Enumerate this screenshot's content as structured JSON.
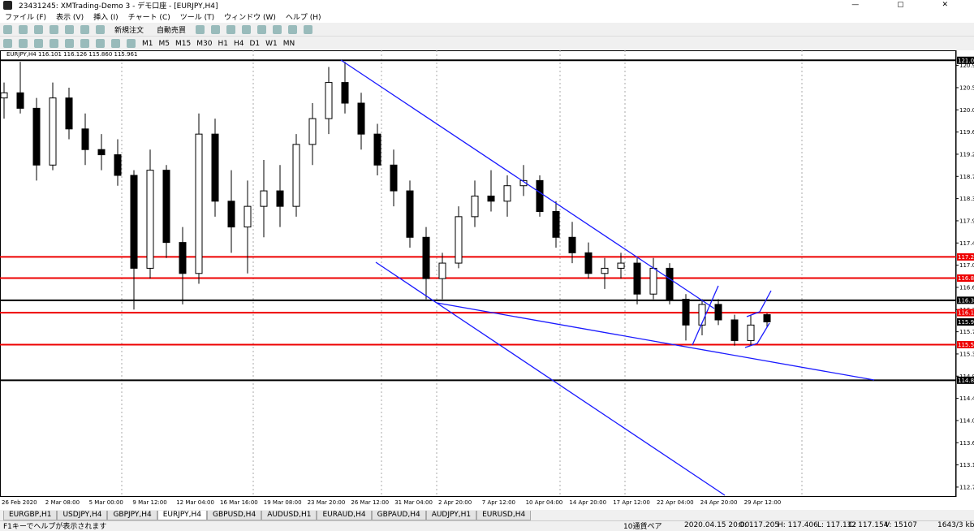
{
  "window": {
    "title": "23431245: XMTrading-Demo 3 - デモ口座 - [EURJPY,H4]"
  },
  "menu": [
    "ファイル (F)",
    "表示 (V)",
    "挿入 (I)",
    "チャート (C)",
    "ツール (T)",
    "ウィンドウ (W)",
    "ヘルプ (H)"
  ],
  "toolbar": {
    "buttons": [
      "新規注文",
      "自動売買"
    ],
    "timeframes": [
      "M1",
      "M5",
      "M15",
      "M30",
      "H1",
      "H4",
      "D1",
      "W1",
      "MN"
    ]
  },
  "chart_data": {
    "type": "candlestick",
    "header": "EURJPY,H4  116.101 116.126 115.860 115.961",
    "ylim": [
      112.57,
      121.16
    ],
    "yticks": [
      120.93,
      {
        "value": 120.5,
        "label": "120.50"
      },
      120.07,
      119.64,
      119.21,
      118.78,
      118.35,
      117.92,
      117.49,
      117.06,
      116.63,
      {
        "value": 116.2,
        "label": "116.20"
      },
      115.77,
      115.34,
      114.91,
      114.48,
      114.05,
      113.62,
      113.19,
      112.76
    ],
    "black_levels": [
      121.03,
      116.38,
      114.83
    ],
    "red_levels": [
      117.22,
      116.81,
      116.14,
      115.52
    ],
    "current_price": 115.96,
    "x_labels": [
      "26 Feb 2020",
      "2 Mar 08:00",
      "5 Mar 00:00",
      "9 Mar 12:00",
      "12 Mar 04:00",
      "16 Mar 16:00",
      "19 Mar 08:00",
      "23 Mar 20:00",
      "26 Mar 12:00",
      "31 Mar 04:00",
      "2 Apr 20:00",
      "7 Apr 12:00",
      "10 Apr 04:00",
      "14 Apr 20:00",
      "17 Apr 12:00",
      "22 Apr 04:00",
      "24 Apr 20:00",
      "29 Apr 12:00"
    ],
    "ohlc": [
      [
        120.3,
        120.6,
        119.9,
        120.4
      ],
      [
        120.4,
        121.0,
        120.0,
        120.1
      ],
      [
        120.1,
        120.3,
        118.7,
        119.0
      ],
      [
        119.0,
        120.6,
        118.9,
        120.3
      ],
      [
        120.3,
        120.5,
        119.5,
        119.7
      ],
      [
        119.7,
        120.0,
        119.0,
        119.3
      ],
      [
        119.3,
        119.6,
        118.9,
        119.2
      ],
      [
        119.2,
        119.5,
        118.6,
        118.8
      ],
      [
        118.8,
        118.9,
        116.2,
        117.0
      ],
      [
        117.0,
        119.3,
        116.8,
        118.9
      ],
      [
        118.9,
        119.0,
        117.2,
        117.5
      ],
      [
        117.5,
        117.8,
        116.3,
        116.9
      ],
      [
        116.9,
        120.0,
        116.7,
        119.6
      ],
      [
        119.6,
        119.9,
        118.0,
        118.3
      ],
      [
        118.3,
        118.9,
        117.3,
        117.8
      ],
      [
        117.8,
        118.7,
        116.9,
        118.2
      ],
      [
        118.2,
        119.1,
        117.6,
        118.5
      ],
      [
        118.5,
        119.0,
        117.8,
        118.2
      ],
      [
        118.2,
        119.6,
        118.0,
        119.4
      ],
      [
        119.4,
        120.2,
        119.0,
        119.9
      ],
      [
        119.9,
        120.9,
        119.6,
        120.6
      ],
      [
        120.6,
        121.0,
        120.0,
        120.2
      ],
      [
        120.2,
        120.4,
        119.3,
        119.6
      ],
      [
        119.6,
        119.8,
        118.8,
        119.0
      ],
      [
        119.0,
        119.3,
        118.2,
        118.5
      ],
      [
        118.5,
        118.7,
        117.4,
        117.6
      ],
      [
        117.6,
        117.8,
        116.4,
        116.8
      ],
      [
        116.8,
        117.3,
        116.4,
        117.1
      ],
      [
        117.1,
        118.2,
        117.0,
        118.0
      ],
      [
        118.0,
        118.7,
        117.8,
        118.4
      ],
      [
        118.4,
        118.9,
        118.1,
        118.3
      ],
      [
        118.3,
        118.8,
        118.0,
        118.6
      ],
      [
        118.6,
        119.0,
        118.4,
        118.7
      ],
      [
        118.7,
        118.8,
        118.0,
        118.1
      ],
      [
        118.1,
        118.3,
        117.4,
        117.6
      ],
      [
        117.6,
        117.9,
        117.1,
        117.3
      ],
      [
        117.3,
        117.5,
        116.8,
        116.9
      ],
      [
        116.9,
        117.2,
        116.6,
        117.0
      ],
      [
        117.0,
        117.3,
        116.8,
        117.1
      ],
      [
        117.1,
        117.2,
        116.3,
        116.5
      ],
      [
        116.5,
        117.2,
        116.4,
        117.0
      ],
      [
        117.0,
        117.1,
        116.3,
        116.4
      ],
      [
        116.4,
        116.5,
        115.6,
        115.9
      ],
      [
        115.9,
        116.4,
        115.7,
        116.3
      ],
      [
        116.3,
        116.4,
        115.9,
        116.0
      ],
      [
        116.0,
        116.1,
        115.5,
        115.6
      ],
      [
        115.6,
        116.1,
        115.5,
        115.9
      ],
      [
        116.101,
        116.126,
        115.86,
        115.961
      ]
    ]
  },
  "tabs": [
    "EURGBP,H1",
    "USDJPY,H4",
    "GBPJPY,H4",
    "EURJPY,H4",
    "GBPUSD,H4",
    "AUDUSD,H1",
    "EURAUD,H4",
    "GBPAUD,H4",
    "AUDJPY,H1",
    "EURUSD,H4"
  ],
  "status": {
    "help": "F1キーでヘルプが表示されます",
    "profile": "10通貨ペア",
    "time": "2020.04.15 20:00",
    "open": "O: 117.205",
    "high": "H: 117.406",
    "low": "L: 117.132",
    "close": "C: 117.154",
    "volume": "V: 15107",
    "traffic": "1643/3 kb"
  }
}
